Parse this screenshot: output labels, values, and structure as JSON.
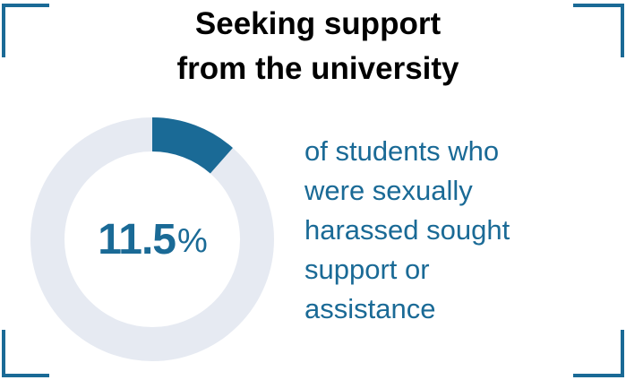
{
  "colors": {
    "accent": "#1a6a96",
    "ring_track": "#e6eaf2",
    "bracket": "#1a6a96",
    "title_text": "#000000"
  },
  "title": {
    "line1": "Seeking support",
    "line2": "from the university"
  },
  "stat": {
    "value": "11.5",
    "unit": "%"
  },
  "description": {
    "line1": "of students who",
    "line2": "were sexually",
    "line3": "harassed sought",
    "line4": "support or",
    "line5": "assistance"
  },
  "chart_data": {
    "type": "pie",
    "title": "Seeking support from the university",
    "values": [
      11.5,
      88.5
    ],
    "unit": "%",
    "style": "donut"
  }
}
